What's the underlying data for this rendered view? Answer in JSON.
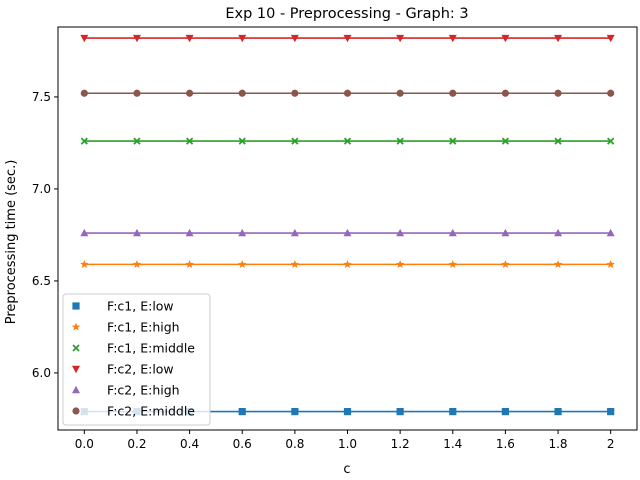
{
  "chart_data": {
    "type": "line",
    "title": "Exp 10 - Preprocessing - Graph: 3",
    "xlabel": "c",
    "ylabel": "Preprocessing time (sec.)",
    "x": [
      0.0,
      0.2,
      0.4,
      0.6,
      0.8,
      1.0,
      1.2,
      1.4,
      1.6,
      1.8,
      2.0
    ],
    "x_tick_labels": [
      "0.0",
      "0.2",
      "0.4",
      "0.6",
      "0.8",
      "1.0",
      "1.2",
      "1.4",
      "1.6",
      "1.8",
      "2"
    ],
    "y_ticks": [
      6.0,
      6.5,
      7.0,
      7.5
    ],
    "y_tick_labels": [
      "6.0",
      "6.5",
      "7.0",
      "7.5"
    ],
    "xlim": [
      -0.1,
      2.1
    ],
    "ylim": [
      5.69,
      7.88
    ],
    "grid": false,
    "legend_position": "lower-left",
    "series": [
      {
        "name": "F:c1, E:low",
        "color": "#1f77b4",
        "marker": "square",
        "values": [
          5.79,
          5.79,
          5.79,
          5.79,
          5.79,
          5.79,
          5.79,
          5.79,
          5.79,
          5.79,
          5.79
        ]
      },
      {
        "name": "F:c1, E:high",
        "color": "#ff7f0e",
        "marker": "star",
        "values": [
          6.59,
          6.59,
          6.59,
          6.59,
          6.59,
          6.59,
          6.59,
          6.59,
          6.59,
          6.59,
          6.59
        ]
      },
      {
        "name": "F:c1, E:middle",
        "color": "#2ca02c",
        "marker": "x",
        "values": [
          7.26,
          7.26,
          7.26,
          7.26,
          7.26,
          7.26,
          7.26,
          7.26,
          7.26,
          7.26,
          7.26
        ]
      },
      {
        "name": "F:c2, E:low",
        "color": "#d62728",
        "marker": "triangle-down",
        "values": [
          7.82,
          7.82,
          7.82,
          7.82,
          7.82,
          7.82,
          7.82,
          7.82,
          7.82,
          7.82,
          7.82
        ]
      },
      {
        "name": "F:c2, E:high",
        "color": "#9467bd",
        "marker": "triangle-up",
        "values": [
          6.76,
          6.76,
          6.76,
          6.76,
          6.76,
          6.76,
          6.76,
          6.76,
          6.76,
          6.76,
          6.76
        ]
      },
      {
        "name": "F:c2, E:middle",
        "color": "#8c564b",
        "marker": "circle",
        "values": [
          7.52,
          7.52,
          7.52,
          7.52,
          7.52,
          7.52,
          7.52,
          7.52,
          7.52,
          7.52,
          7.52
        ]
      }
    ]
  }
}
